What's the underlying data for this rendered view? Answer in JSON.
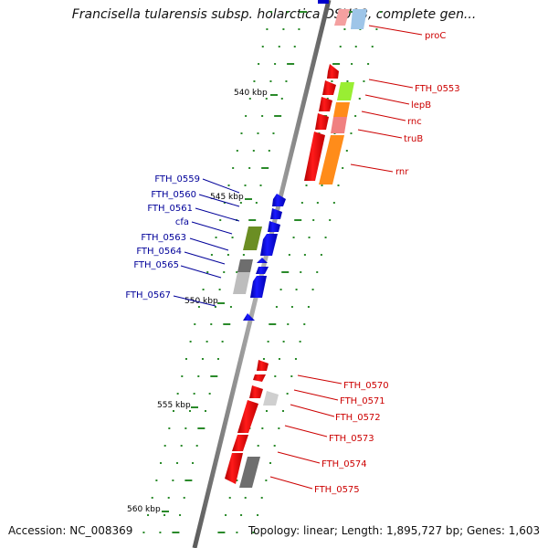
{
  "title": "Francisella tularensis subsp. holarctica OSU18, complete gen...",
  "footer": {
    "accession": "Accession: NC_008369",
    "topology": "Topology: linear; Length: 1,895,727 bp; Genes: 1,603"
  },
  "scale_labels": [
    "540 kbp",
    "545 kbp",
    "550 kbp",
    "555 kbp",
    "560 kbp"
  ],
  "colors": {
    "backbone": "#8a8a8a",
    "forward_gene": "#ff0000",
    "reverse_gene": "#0000ff",
    "label_red": "#cc0000",
    "label_blue": "#000099",
    "tick": "#2a8a2a",
    "olive": "#6b8e23",
    "gray": "#6e6e6e",
    "light_gray": "#bdbdbd",
    "lime": "#99ee33",
    "orange": "#ff8c1a",
    "salmon": "#f08080",
    "light_blue": "#9ec5e8"
  },
  "gene_labels": [
    {
      "text": "proC",
      "side": "right",
      "strand": "forward"
    },
    {
      "text": "FTH_0553",
      "side": "right",
      "strand": "forward"
    },
    {
      "text": "lepB",
      "side": "right",
      "strand": "forward"
    },
    {
      "text": "rnc",
      "side": "right",
      "strand": "forward"
    },
    {
      "text": "truB",
      "side": "right",
      "strand": "forward"
    },
    {
      "text": "rnr",
      "side": "right",
      "strand": "forward"
    },
    {
      "text": "FTH_0559",
      "side": "left",
      "strand": "reverse"
    },
    {
      "text": "FTH_0560",
      "side": "left",
      "strand": "reverse"
    },
    {
      "text": "FTH_0561",
      "side": "left",
      "strand": "reverse"
    },
    {
      "text": "cfa",
      "side": "left",
      "strand": "reverse"
    },
    {
      "text": "FTH_0563",
      "side": "left",
      "strand": "reverse"
    },
    {
      "text": "FTH_0564",
      "side": "left",
      "strand": "reverse"
    },
    {
      "text": "FTH_0565",
      "side": "left",
      "strand": "reverse"
    },
    {
      "text": "FTH_0567",
      "side": "left",
      "strand": "reverse"
    },
    {
      "text": "FTH_0570",
      "side": "right",
      "strand": "forward"
    },
    {
      "text": "FTH_0571",
      "side": "right",
      "strand": "forward"
    },
    {
      "text": "FTH_0572",
      "side": "right",
      "strand": "forward"
    },
    {
      "text": "FTH_0573",
      "side": "right",
      "strand": "forward"
    },
    {
      "text": "FTH_0574",
      "side": "right",
      "strand": "forward"
    },
    {
      "text": "FTH_0575",
      "side": "right",
      "strand": "forward"
    }
  ]
}
